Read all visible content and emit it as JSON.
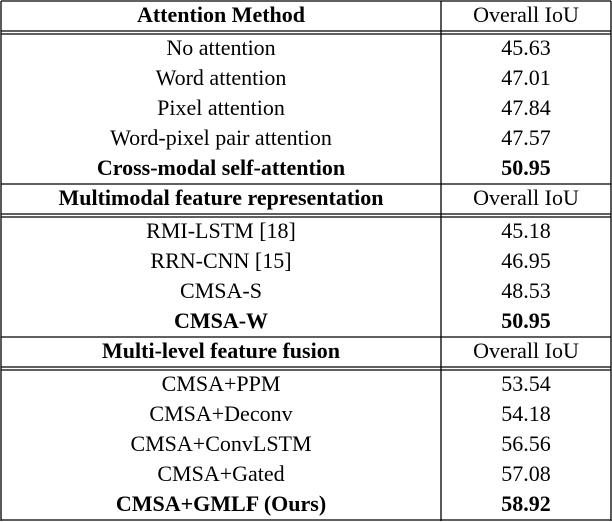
{
  "sections": [
    {
      "header": [
        "Attention Method",
        "Overall IoU"
      ],
      "rows": [
        {
          "name": "No attention",
          "value": 45.63
        },
        {
          "name": "Word attention",
          "value": 47.01
        },
        {
          "name": "Pixel attention",
          "value": 47.84
        },
        {
          "name": "Word-pixel pair attention",
          "value": 47.57
        },
        {
          "name": "Cross-modal self-attention",
          "value": 50.95,
          "bold": true
        }
      ]
    },
    {
      "header": [
        "Multimodal feature representation",
        "Overall IoU"
      ],
      "rows": [
        {
          "name": "RMI-LSTM [18]",
          "value": 45.18
        },
        {
          "name": "RRN-CNN [15]",
          "value": 46.95
        },
        {
          "name": "CMSA-S",
          "value": 48.53
        },
        {
          "name": "CMSA-W",
          "value": 50.95,
          "bold": true
        }
      ]
    },
    {
      "header": [
        "Multi-level feature fusion",
        "Overall IoU"
      ],
      "rows": [
        {
          "name": "CMSA+PPM",
          "value": 53.54
        },
        {
          "name": "CMSA+Deconv",
          "value": 54.18
        },
        {
          "name": "CMSA+ConvLSTM",
          "value": 56.56
        },
        {
          "name": "CMSA+Gated",
          "value": 57.08
        },
        {
          "name": "CMSA+GMLF (Ours)",
          "value": 58.92,
          "bold": true
        }
      ]
    }
  ]
}
